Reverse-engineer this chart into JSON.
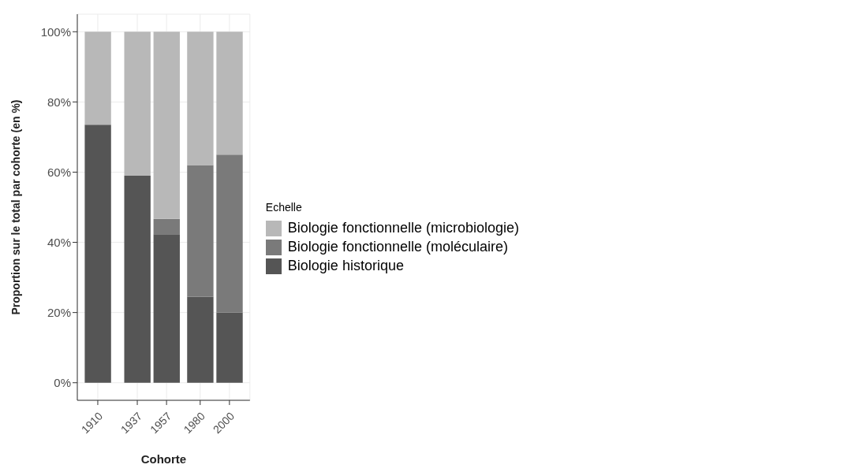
{
  "chart_data": {
    "type": "bar",
    "stacked": true,
    "xlabel": "Cohorte",
    "ylabel": "Proportion sur le total par cohorte (en %)",
    "legend_title": "Echelle",
    "x": [
      1910,
      1937,
      1957,
      1980,
      2000
    ],
    "xlim": [
      1896,
      2014
    ],
    "xticks": [
      1910,
      1937,
      1957,
      1980,
      2000
    ],
    "ylim": [
      -5,
      105
    ],
    "yticks": [
      {
        "value": 0,
        "label": "0%"
      },
      {
        "value": 20,
        "label": "20%"
      },
      {
        "value": 40,
        "label": "40%"
      },
      {
        "value": 60,
        "label": "60%"
      },
      {
        "value": 80,
        "label": "80%"
      },
      {
        "value": 100,
        "label": "100%"
      }
    ],
    "grid": true,
    "legend": "right",
    "series": [
      {
        "name": "Biologie historique",
        "color": "#555555",
        "values": [
          73.5,
          59,
          42.3,
          24.5,
          20
        ]
      },
      {
        "name": "Biologie fonctionnelle (moléculaire)",
        "color": "#7a7a7a",
        "values": [
          0,
          0,
          4.4,
          37.5,
          45
        ]
      },
      {
        "name": "Biologie fonctionnelle (microbiologie)",
        "color": "#b8b8b8",
        "values": [
          26.5,
          41,
          53.3,
          38,
          35
        ]
      }
    ]
  }
}
